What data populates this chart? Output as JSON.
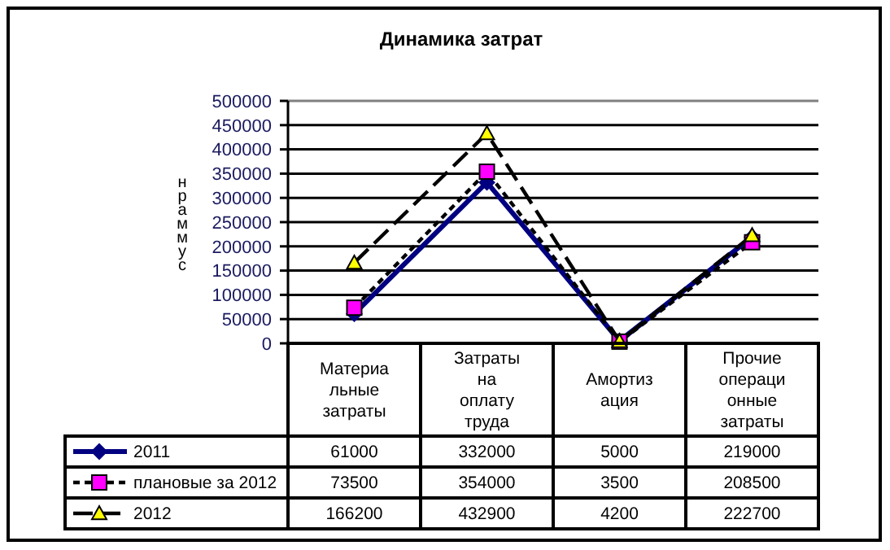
{
  "chart_data": {
    "type": "line",
    "title": "Динамика затрат",
    "ylabel": "нраммус",
    "categories": [
      "Материа\nльные\nзатраты",
      "Затраты\nна\nоплату\nтруда",
      "Амортиз\nация",
      "Прочие\nопераци\nонные\nзатраты"
    ],
    "series": [
      {
        "name": "2011",
        "color": "#000080",
        "marker": "diamond",
        "line_style": "solid",
        "values": [
          61000,
          332000,
          5000,
          219000
        ]
      },
      {
        "name": "плановые за 2012",
        "color": "#000000",
        "marker": "square",
        "line_style": "dashed",
        "values": [
          73500,
          354000,
          3500,
          208500
        ]
      },
      {
        "name": "2012",
        "color": "#000000",
        "marker": "triangle",
        "line_style": "dashed",
        "values": [
          166200,
          432900,
          4200,
          222700
        ]
      }
    ],
    "ylim": [
      0,
      500000
    ],
    "yticks": [
      0,
      50000,
      100000,
      150000,
      200000,
      250000,
      300000,
      350000,
      400000,
      450000,
      500000
    ],
    "grid": "y",
    "legend": "bottom",
    "data_labels": true
  }
}
